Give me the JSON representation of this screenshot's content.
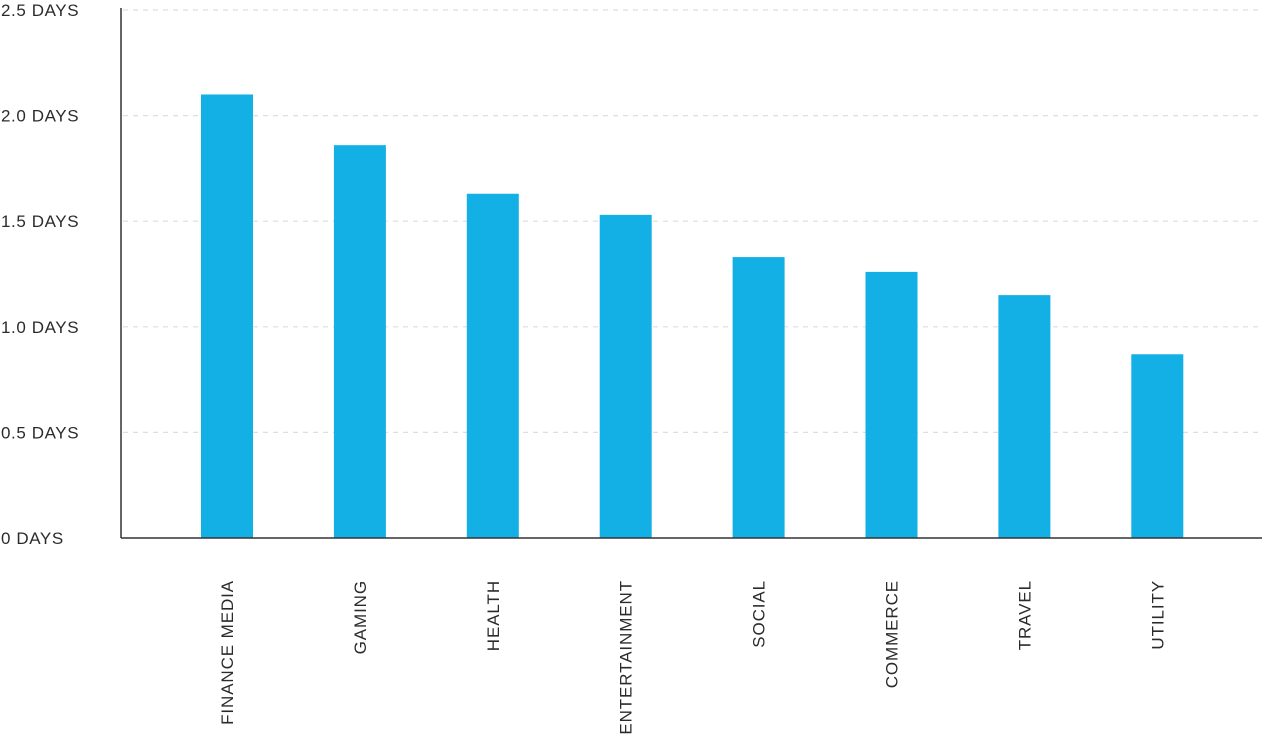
{
  "chart_data": {
    "type": "bar",
    "categories": [
      "FINANCE MEDIA",
      "GAMING",
      "HEALTH",
      "ENTERTAINMENT",
      "SOCIAL",
      "COMMERCE",
      "TRAVEL",
      "UTILITY"
    ],
    "values": [
      2.1,
      1.86,
      1.63,
      1.53,
      1.33,
      1.26,
      1.15,
      0.87
    ],
    "y_unit": "DAYS",
    "ylim": [
      0,
      2.5
    ],
    "y_ticks": [
      0,
      0.5,
      1.0,
      1.5,
      2.0,
      2.5
    ],
    "y_tick_labels": [
      "0 DAYS",
      "0.5 DAYS",
      "1.0 DAYS",
      "1.5 DAYS",
      "2.0 DAYS",
      "2.5 DAYS"
    ],
    "title": "",
    "xlabel": "",
    "ylabel": "",
    "grid": true,
    "legend": "none",
    "bar_color": "#13b0e6"
  }
}
